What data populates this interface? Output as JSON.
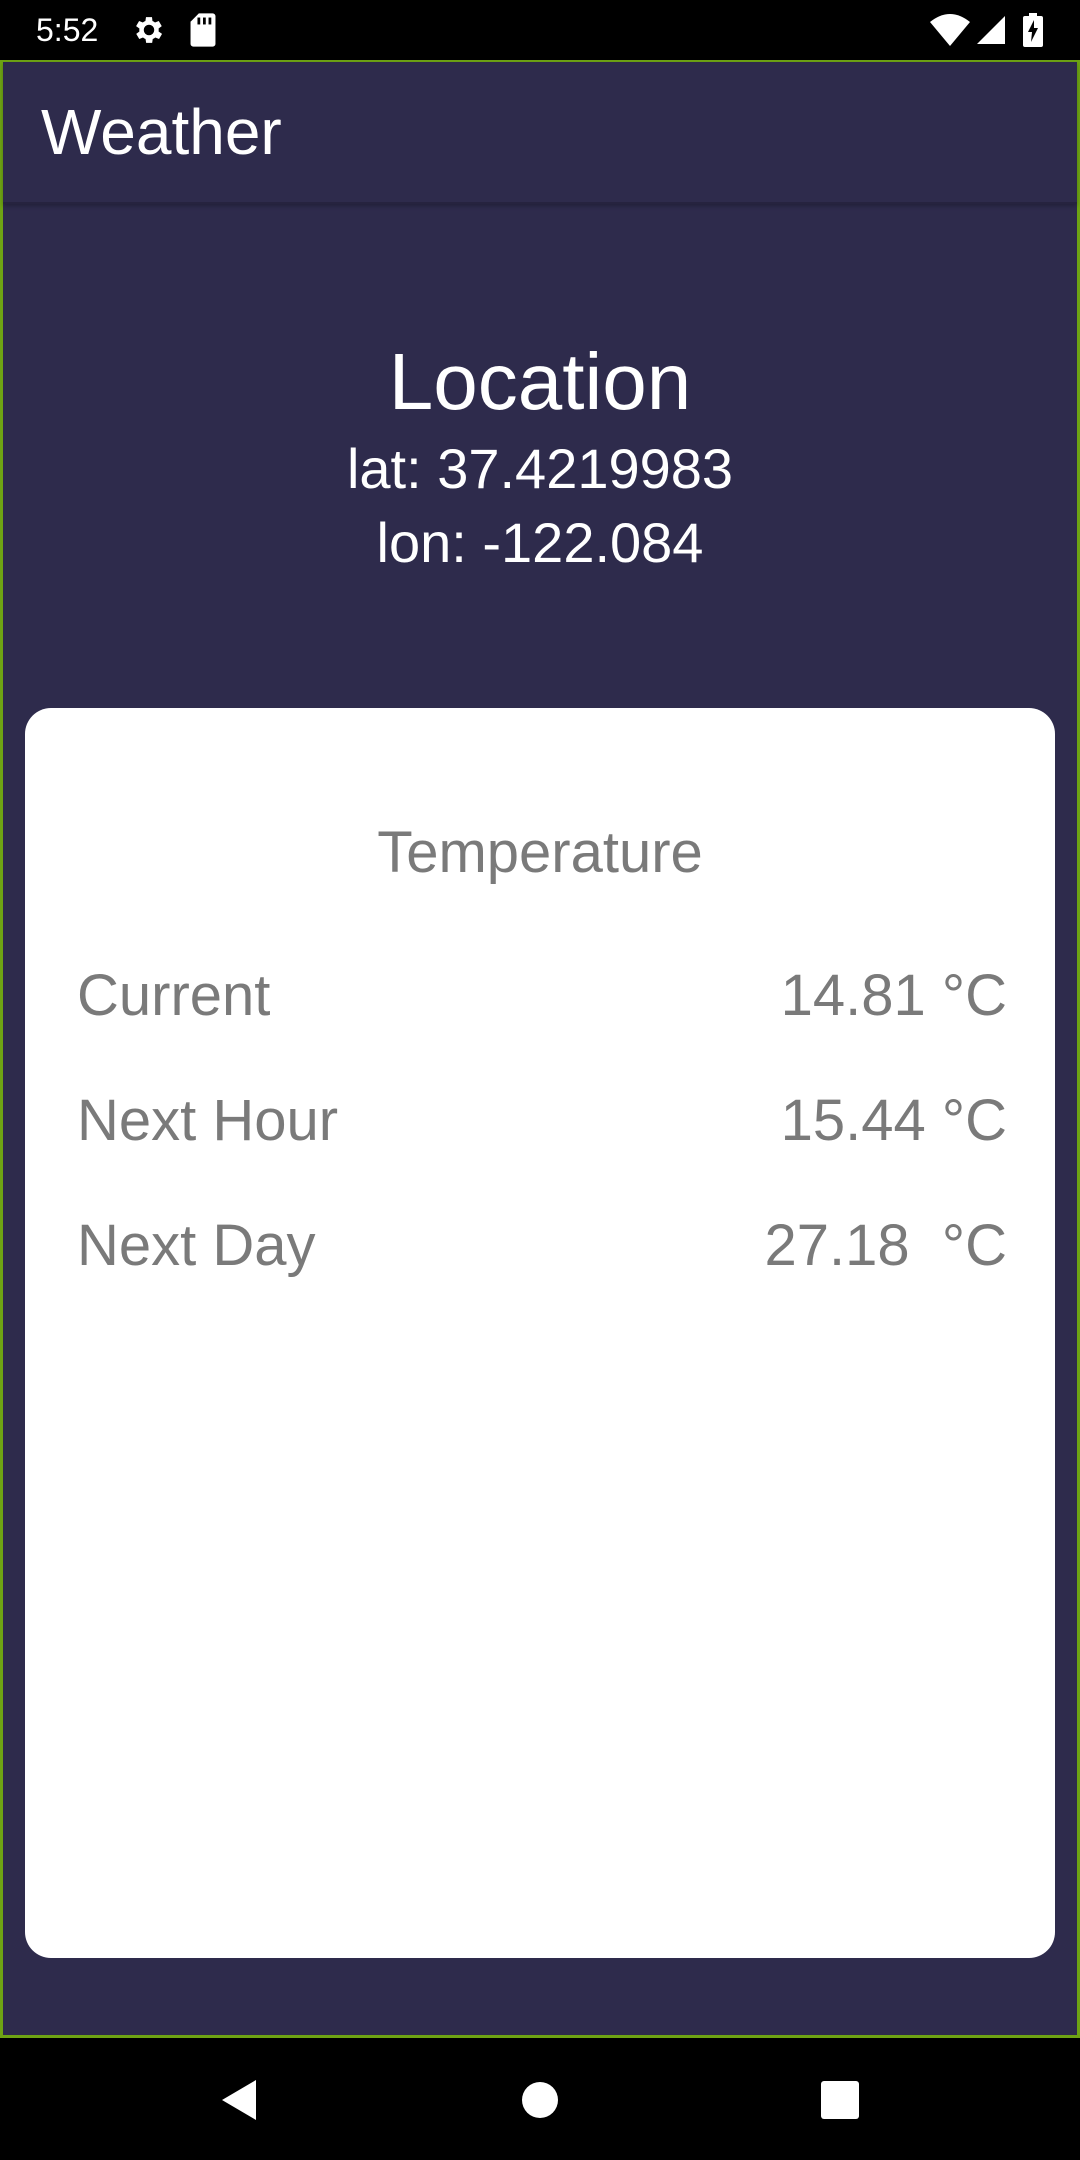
{
  "status_bar": {
    "time": "5:52",
    "icons": [
      "gear-icon",
      "sd-card-icon",
      "wifi-icon",
      "cell-signal-icon",
      "battery-charging-icon"
    ]
  },
  "app_bar": {
    "title": "Weather"
  },
  "location": {
    "heading": "Location",
    "lat": "lat: 37.4219983",
    "lon": "lon: -122.084"
  },
  "temperature": {
    "title": "Temperature",
    "rows": [
      {
        "label": "Current",
        "value": "14.81 °C"
      },
      {
        "label": "Next Hour",
        "value": "15.44 °C"
      },
      {
        "label": "Next Day",
        "value": "27.18  °C"
      }
    ]
  },
  "nav_bar": {
    "buttons": [
      "back-icon",
      "home-icon",
      "recents-icon"
    ]
  },
  "colors": {
    "background": "#2e2b4c",
    "card": "#ffffff",
    "card_text": "#7a7a7a",
    "frame_border": "#6ea314"
  }
}
